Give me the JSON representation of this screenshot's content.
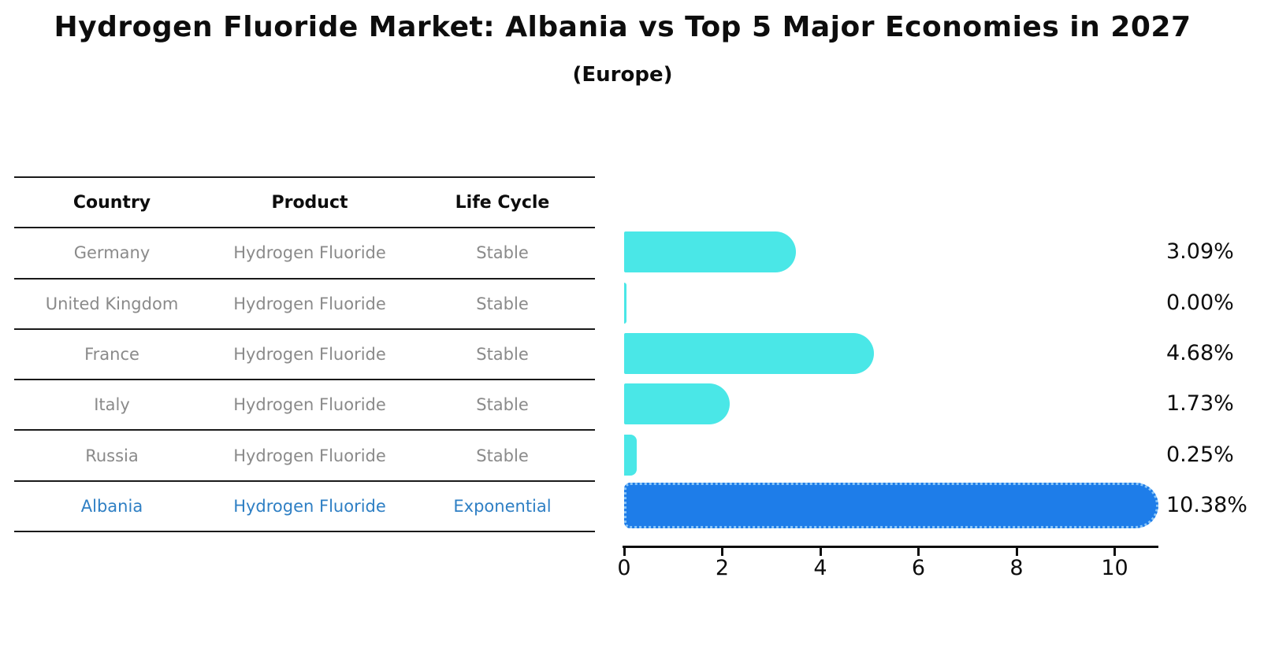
{
  "title": "Hydrogen Fluoride Market: Albania vs Top 5 Major Economies in 2027",
  "subtitle": "(Europe)",
  "table": {
    "headers": [
      "Country",
      "Product",
      "Life Cycle"
    ],
    "rows": [
      {
        "country": "Germany",
        "product": "Hydrogen Fluoride",
        "life_cycle": "Stable",
        "highlight": false
      },
      {
        "country": "United Kingdom",
        "product": "Hydrogen Fluoride",
        "life_cycle": "Stable",
        "highlight": false
      },
      {
        "country": "France",
        "product": "Hydrogen Fluoride",
        "life_cycle": "Stable",
        "highlight": false
      },
      {
        "country": "Italy",
        "product": "Hydrogen Fluoride",
        "life_cycle": "Stable",
        "highlight": false
      },
      {
        "country": "Russia",
        "product": "Hydrogen Fluoride",
        "life_cycle": "Stable",
        "highlight": false
      },
      {
        "country": "Albania",
        "product": "Hydrogen Fluoride",
        "life_cycle": "Exponential",
        "highlight": true
      }
    ]
  },
  "chart_data": {
    "type": "bar",
    "orientation": "horizontal",
    "title": "Hydrogen Fluoride Market: Albania vs Top 5 Major Economies in 2027",
    "subtitle": "(Europe)",
    "categories": [
      "Germany",
      "United Kingdom",
      "France",
      "Italy",
      "Russia",
      "Albania"
    ],
    "values": [
      3.09,
      0.0,
      4.68,
      1.73,
      0.25,
      10.38
    ],
    "value_labels": [
      "3.09%",
      "0.00%",
      "4.68%",
      "1.73%",
      "0.25%",
      "10.38%"
    ],
    "highlight_index": 5,
    "x_ticks": [
      "0",
      "2",
      "4",
      "6",
      "8",
      "10"
    ],
    "x_tick_values": [
      0,
      2,
      4,
      6,
      8,
      10
    ],
    "xlim": [
      0,
      10.9
    ],
    "grid": false,
    "legend": "none"
  },
  "colors": {
    "bar": "#4AE7E7",
    "highlight_bar": "#1E7DE9",
    "highlight_text": "#2e7fc4",
    "table_text": "#8a8a8a",
    "heading_text": "#0d0d0d"
  }
}
